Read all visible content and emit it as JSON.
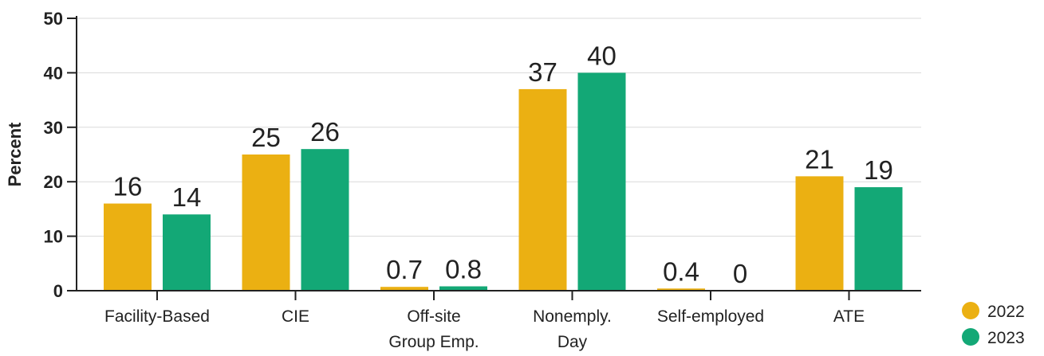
{
  "chart_data": {
    "type": "bar",
    "title": "",
    "xlabel": "",
    "ylabel": "Percent",
    "ylim": [
      0,
      50
    ],
    "yticks": [
      0,
      10,
      20,
      30,
      40,
      50
    ],
    "grid": true,
    "legend_position": "bottom-right",
    "categories": [
      [
        "Facility-Based"
      ],
      [
        "CIE"
      ],
      [
        "Off-site",
        "Group Emp."
      ],
      [
        "Nonemply.",
        "Day"
      ],
      [
        "Self-employed"
      ],
      [
        "ATE"
      ]
    ],
    "series": [
      {
        "name": "2022",
        "color": "#EBB012",
        "values": [
          16,
          25,
          0.7,
          37,
          0.4,
          21
        ],
        "labels": [
          "16",
          "25",
          "0.7",
          "37",
          "0.4",
          "21"
        ]
      },
      {
        "name": "2023",
        "color": "#13A876",
        "values": [
          14,
          26,
          0.8,
          40,
          0,
          19
        ],
        "labels": [
          "14",
          "26",
          "0.8",
          "40",
          "0",
          "19"
        ]
      }
    ]
  }
}
